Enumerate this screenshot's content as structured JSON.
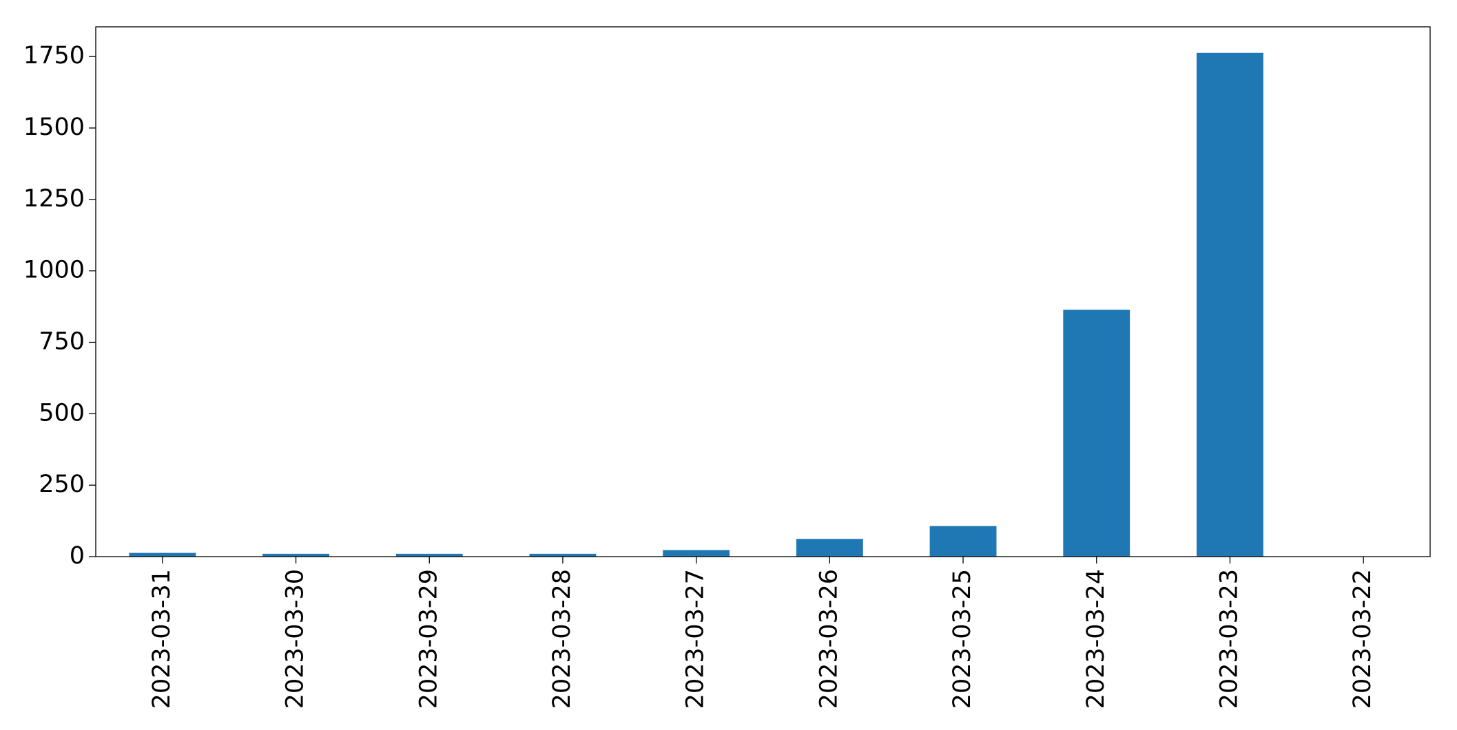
{
  "chart_data": {
    "type": "bar",
    "categories": [
      "2023-03-31",
      "2023-03-30",
      "2023-03-29",
      "2023-03-28",
      "2023-03-27",
      "2023-03-26",
      "2023-03-25",
      "2023-03-24",
      "2023-03-23",
      "2023-03-22"
    ],
    "values": [
      13,
      10,
      10,
      10,
      23,
      62,
      107,
      864,
      1763,
      0
    ],
    "color": "#1f77b4",
    "ylim": [
      0,
      1854
    ],
    "yticks": [
      0,
      250,
      500,
      750,
      1000,
      1250,
      1500,
      1750
    ],
    "grid": false
  }
}
